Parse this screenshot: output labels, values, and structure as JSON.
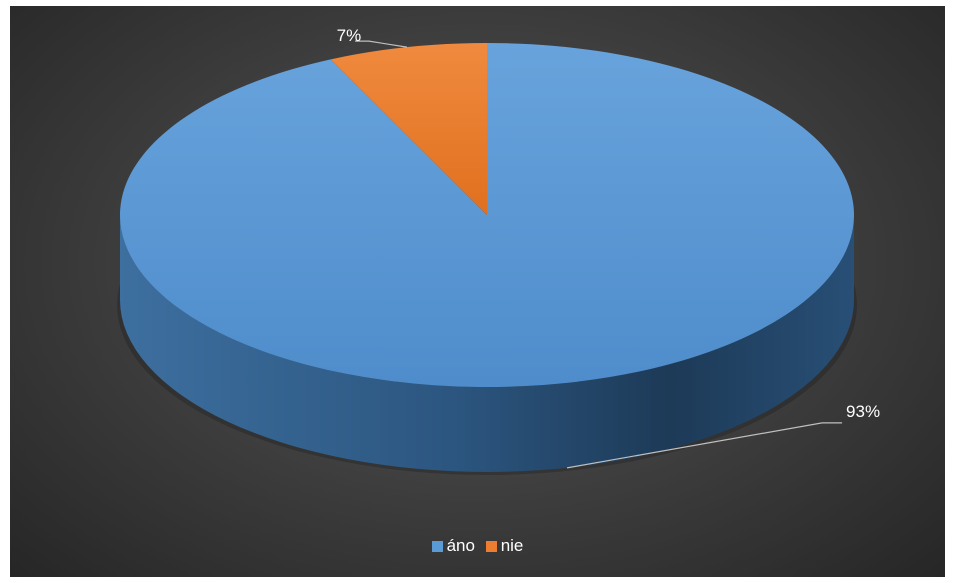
{
  "chart_data": {
    "type": "pie",
    "style": "3d",
    "labels": [
      "áno",
      "nie"
    ],
    "values": [
      93,
      7
    ],
    "data_labels": [
      "93%",
      "7%"
    ],
    "colors": [
      "#5b9bd5",
      "#ed7d31"
    ],
    "legend": "bottom",
    "title": ""
  },
  "legend": {
    "items": [
      {
        "label": "áno",
        "color": "#5b9bd5"
      },
      {
        "label": "nie",
        "color": "#ed7d31"
      }
    ]
  }
}
